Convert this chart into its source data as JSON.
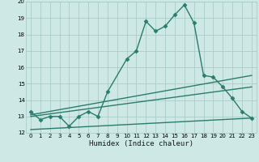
{
  "line1_x": [
    0,
    1,
    2,
    3,
    4,
    5,
    6,
    7,
    8,
    10,
    11,
    12,
    13,
    14,
    15,
    16,
    17,
    18,
    19,
    20,
    21,
    22,
    23
  ],
  "line1_y": [
    13.3,
    12.8,
    13.0,
    13.0,
    12.4,
    13.0,
    13.3,
    13.0,
    14.5,
    16.5,
    17.0,
    18.8,
    18.2,
    18.5,
    19.2,
    19.8,
    18.7,
    15.5,
    15.4,
    14.8,
    14.1,
    13.3,
    12.9
  ],
  "line2_x": [
    0,
    23
  ],
  "line2_y": [
    13.1,
    15.5
  ],
  "line3_x": [
    0,
    23
  ],
  "line3_y": [
    13.0,
    14.8
  ],
  "line4_x": [
    0,
    23
  ],
  "line4_y": [
    12.2,
    12.9
  ],
  "line_color": "#2a7d6d",
  "bg_color": "#cde8e5",
  "grid_color": "#aaccc8",
  "xlabel": "Humidex (Indice chaleur)",
  "xlim": [
    -0.5,
    23.5
  ],
  "ylim": [
    12,
    20
  ],
  "xticks": [
    0,
    1,
    2,
    3,
    4,
    5,
    6,
    7,
    8,
    9,
    10,
    11,
    12,
    13,
    14,
    15,
    16,
    17,
    18,
    19,
    20,
    21,
    22,
    23
  ],
  "yticks": [
    12,
    13,
    14,
    15,
    16,
    17,
    18,
    19,
    20
  ],
  "marker": "D",
  "markersize": 2.5,
  "linewidth": 1.0,
  "tick_fontsize": 5.0,
  "xlabel_fontsize": 6.5
}
